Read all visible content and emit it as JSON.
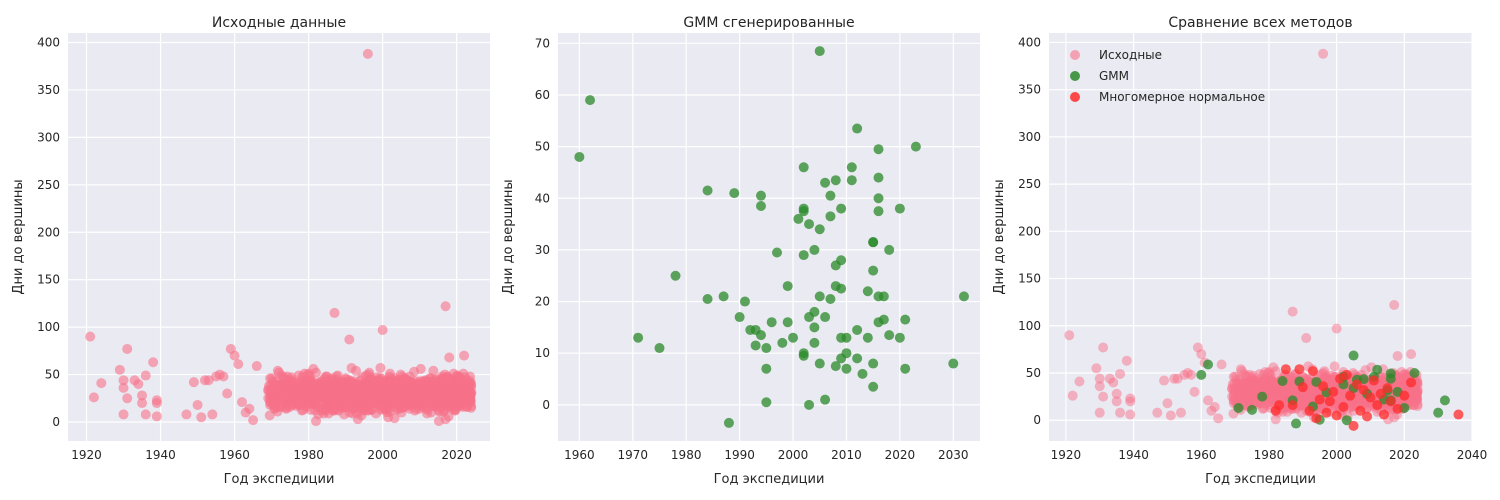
{
  "style": {
    "panel_bg": "#eaeaf2",
    "grid_color": "#ffffff",
    "original_color": "#f77189",
    "gmm_color": "#2a8a2a",
    "mvn_color": "#ff2b2b"
  },
  "chart_data": [
    {
      "type": "scatter",
      "title": "Исходные данные",
      "xlabel": "Год экспедиции",
      "ylabel": "Дни до вершины",
      "xlim": [
        1915,
        2029
      ],
      "ylim": [
        -20,
        410
      ],
      "xticks": [
        1920,
        1940,
        1960,
        1980,
        2000,
        2020
      ],
      "yticks": [
        0,
        50,
        100,
        150,
        200,
        250,
        300,
        350,
        400
      ],
      "grid": true,
      "series": [
        {
          "color": "#f77189",
          "alpha": 0.6,
          "points": [
            [
              1921,
              90
            ],
            [
              1922,
              26
            ],
            [
              1924,
              41
            ],
            [
              1929,
              55
            ],
            [
              1930,
              8
            ],
            [
              1930,
              44
            ],
            [
              1930,
              36
            ],
            [
              1931,
              77
            ],
            [
              1931,
              25
            ],
            [
              1933,
              44
            ],
            [
              1934,
              40
            ],
            [
              1935,
              20
            ],
            [
              1935,
              28
            ],
            [
              1936,
              49
            ],
            [
              1936,
              8
            ],
            [
              1938,
              63
            ],
            [
              1939,
              20
            ],
            [
              1939,
              6
            ],
            [
              1939,
              23
            ],
            [
              1947,
              8
            ],
            [
              1949,
              42
            ],
            [
              1950,
              18
            ],
            [
              1951,
              5
            ],
            [
              1952,
              44
            ],
            [
              1953,
              44
            ],
            [
              1954,
              8
            ],
            [
              1955,
              48
            ],
            [
              1956,
              50
            ],
            [
              1957,
              48
            ],
            [
              1958,
              30
            ],
            [
              1959,
              77
            ],
            [
              1960,
              70
            ],
            [
              1961,
              61
            ],
            [
              1962,
              21
            ],
            [
              1963,
              10
            ],
            [
              1964,
              14
            ],
            [
              1965,
              2
            ],
            [
              1966,
              59
            ],
            [
              1996,
              388
            ],
            [
              2000,
              97
            ],
            [
              1987,
              115
            ],
            [
              2017,
              122
            ],
            [
              1991,
              87
            ],
            [
              2022,
              70
            ],
            [
              2018,
              68
            ]
          ]
        }
      ]
    },
    {
      "type": "scatter",
      "title": "GMM сгенерированные",
      "xlabel": "Год экспедиции",
      "ylabel": "Дни до вершины",
      "xlim": [
        1956,
        2035
      ],
      "ylim": [
        -7,
        72
      ],
      "xticks": [
        1960,
        1970,
        1980,
        1990,
        2000,
        2010,
        2020,
        2030
      ],
      "yticks": [
        0,
        10,
        20,
        30,
        40,
        50,
        60,
        70
      ],
      "grid": true,
      "series": [
        {
          "color": "#2a8a2a",
          "alpha": 0.75,
          "points": [
            [
              1960,
              48
            ],
            [
              1962,
              59
            ],
            [
              1971,
              13
            ],
            [
              1975,
              11
            ],
            [
              1978,
              25
            ],
            [
              1984,
              41.5
            ],
            [
              1984,
              20.5
            ],
            [
              1987,
              21
            ],
            [
              1988,
              -3.5
            ],
            [
              1989,
              41
            ],
            [
              1990,
              17
            ],
            [
              1991,
              20
            ],
            [
              1992,
              14.5
            ],
            [
              1993,
              14.5
            ],
            [
              1993,
              11.5
            ],
            [
              1994,
              40.5
            ],
            [
              1994,
              38.5
            ],
            [
              1994,
              13.5
            ],
            [
              1995,
              7
            ],
            [
              1995,
              11
            ],
            [
              1995,
              0.5
            ],
            [
              1996,
              16
            ],
            [
              1997,
              29.5
            ],
            [
              1998,
              12
            ],
            [
              1999,
              16
            ],
            [
              1999,
              23
            ],
            [
              2000,
              13
            ],
            [
              2001,
              36
            ],
            [
              2002,
              38
            ],
            [
              2002,
              46
            ],
            [
              2002,
              37.5
            ],
            [
              2002,
              29
            ],
            [
              2002,
              10
            ],
            [
              2002,
              9.5
            ],
            [
              2003,
              0
            ],
            [
              2003,
              17
            ],
            [
              2003,
              35
            ],
            [
              2004,
              15
            ],
            [
              2004,
              12
            ],
            [
              2004,
              30
            ],
            [
              2004,
              18
            ],
            [
              2005,
              34
            ],
            [
              2005,
              68.5
            ],
            [
              2005,
              21
            ],
            [
              2005,
              8
            ],
            [
              2006,
              43
            ],
            [
              2006,
              1
            ],
            [
              2006,
              17
            ],
            [
              2007,
              40.5
            ],
            [
              2007,
              20.5
            ],
            [
              2007,
              36.5
            ],
            [
              2008,
              43.5
            ],
            [
              2008,
              27
            ],
            [
              2008,
              23
            ],
            [
              2008,
              7.5
            ],
            [
              2009,
              38
            ],
            [
              2009,
              28
            ],
            [
              2009,
              22.5
            ],
            [
              2009,
              13
            ],
            [
              2009,
              9
            ],
            [
              2010,
              13
            ],
            [
              2010,
              10
            ],
            [
              2010,
              7
            ],
            [
              2011,
              46
            ],
            [
              2011,
              43.5
            ],
            [
              2012,
              53.5
            ],
            [
              2012,
              14.5
            ],
            [
              2012,
              9
            ],
            [
              2013,
              6
            ],
            [
              2014,
              13
            ],
            [
              2014,
              22
            ],
            [
              2015,
              26
            ],
            [
              2015,
              31.5
            ],
            [
              2015,
              31.5
            ],
            [
              2015,
              3.5
            ],
            [
              2015,
              8
            ],
            [
              2016,
              49.5
            ],
            [
              2016,
              44
            ],
            [
              2016,
              40
            ],
            [
              2016,
              37.5
            ],
            [
              2016,
              21
            ],
            [
              2016,
              16
            ],
            [
              2017,
              16.5
            ],
            [
              2017,
              21
            ],
            [
              2018,
              30
            ],
            [
              2018,
              13.5
            ],
            [
              2020,
              38
            ],
            [
              2020,
              13
            ],
            [
              2021,
              16.5
            ],
            [
              2021,
              7
            ],
            [
              2023,
              50
            ],
            [
              2030,
              8
            ],
            [
              2032,
              21
            ]
          ]
        }
      ]
    },
    {
      "type": "scatter",
      "title": "Сравнение всех методов",
      "xlabel": "Год экспедиции",
      "ylabel": "Дни до вершины",
      "xlim": [
        1915,
        2040
      ],
      "ylim": [
        -22,
        410
      ],
      "xticks": [
        1920,
        1940,
        1960,
        1980,
        2000,
        2020,
        2040
      ],
      "yticks": [
        0,
        50,
        100,
        150,
        200,
        250,
        300,
        350,
        400
      ],
      "grid": true,
      "legend_position": "upper-left",
      "series": [
        {
          "name": "Исходные",
          "color": "#f77189",
          "alpha": 0.5,
          "points": [
            [
              1921,
              90
            ],
            [
              1922,
              26
            ],
            [
              1924,
              41
            ],
            [
              1929,
              55
            ],
            [
              1930,
              8
            ],
            [
              1930,
              44
            ],
            [
              1930,
              36
            ],
            [
              1931,
              77
            ],
            [
              1931,
              25
            ],
            [
              1933,
              44
            ],
            [
              1934,
              40
            ],
            [
              1935,
              20
            ],
            [
              1935,
              28
            ],
            [
              1936,
              49
            ],
            [
              1936,
              8
            ],
            [
              1938,
              63
            ],
            [
              1939,
              20
            ],
            [
              1939,
              6
            ],
            [
              1939,
              23
            ],
            [
              1947,
              8
            ],
            [
              1949,
              42
            ],
            [
              1950,
              18
            ],
            [
              1951,
              5
            ],
            [
              1952,
              44
            ],
            [
              1953,
              44
            ],
            [
              1954,
              8
            ],
            [
              1955,
              48
            ],
            [
              1956,
              50
            ],
            [
              1957,
              48
            ],
            [
              1958,
              30
            ],
            [
              1959,
              77
            ],
            [
              1960,
              70
            ],
            [
              1961,
              61
            ],
            [
              1962,
              21
            ],
            [
              1963,
              10
            ],
            [
              1964,
              14
            ],
            [
              1965,
              2
            ],
            [
              1966,
              59
            ],
            [
              1996,
              388
            ],
            [
              2000,
              97
            ],
            [
              1987,
              115
            ],
            [
              2017,
              122
            ],
            [
              1991,
              87
            ],
            [
              2022,
              70
            ],
            [
              2018,
              68
            ]
          ]
        },
        {
          "name": "GMM",
          "color": "#2a8a2a",
          "alpha": 0.75,
          "points": [
            [
              1960,
              48
            ],
            [
              1962,
              59
            ],
            [
              1971,
              13
            ],
            [
              1975,
              11
            ],
            [
              1978,
              25
            ],
            [
              1984,
              41.5
            ],
            [
              1987,
              21
            ],
            [
              1988,
              -3.5
            ],
            [
              1989,
              41
            ],
            [
              1993,
              14.5
            ],
            [
              1994,
              40.5
            ],
            [
              1995,
              0.5
            ],
            [
              1997,
              29.5
            ],
            [
              2002,
              46
            ],
            [
              2002,
              38
            ],
            [
              2003,
              0
            ],
            [
              2005,
              68.5
            ],
            [
              2005,
              34
            ],
            [
              2006,
              43
            ],
            [
              2008,
              43.5
            ],
            [
              2009,
              28
            ],
            [
              2011,
              46
            ],
            [
              2012,
              53.5
            ],
            [
              2014,
              22
            ],
            [
              2015,
              31.5
            ],
            [
              2016,
              49.5
            ],
            [
              2016,
              44
            ],
            [
              2016,
              21
            ],
            [
              2018,
              30
            ],
            [
              2020,
              13
            ],
            [
              2023,
              50
            ],
            [
              2030,
              8
            ],
            [
              2032,
              21
            ]
          ]
        },
        {
          "name": "Многомерное нормальное",
          "color": "#ff2b2b",
          "alpha": 0.75,
          "points": [
            [
              1982,
              10
            ],
            [
              1983,
              16
            ],
            [
              1985,
              54
            ],
            [
              1987,
              16
            ],
            [
              1989,
              54
            ],
            [
              1990,
              35
            ],
            [
              1992,
              10
            ],
            [
              1993,
              52
            ],
            [
              1994,
              2
            ],
            [
              1995,
              22
            ],
            [
              1996,
              36
            ],
            [
              1997,
              8
            ],
            [
              1998,
              20
            ],
            [
              1999,
              30
            ],
            [
              2000,
              5
            ],
            [
              2001,
              44
            ],
            [
              2002,
              14
            ],
            [
              2003,
              48
            ],
            [
              2004,
              26
            ],
            [
              2005,
              -6
            ],
            [
              2006,
              38
            ],
            [
              2007,
              10
            ],
            [
              2008,
              32
            ],
            [
              2009,
              4
            ],
            [
              2010,
              24
            ],
            [
              2011,
              42
            ],
            [
              2012,
              16
            ],
            [
              2013,
              28
            ],
            [
              2014,
              6
            ],
            [
              2015,
              34
            ],
            [
              2016,
              20
            ],
            [
              2018,
              12
            ],
            [
              2020,
              26
            ],
            [
              2022,
              40
            ],
            [
              2036,
              6
            ]
          ]
        }
      ]
    }
  ]
}
